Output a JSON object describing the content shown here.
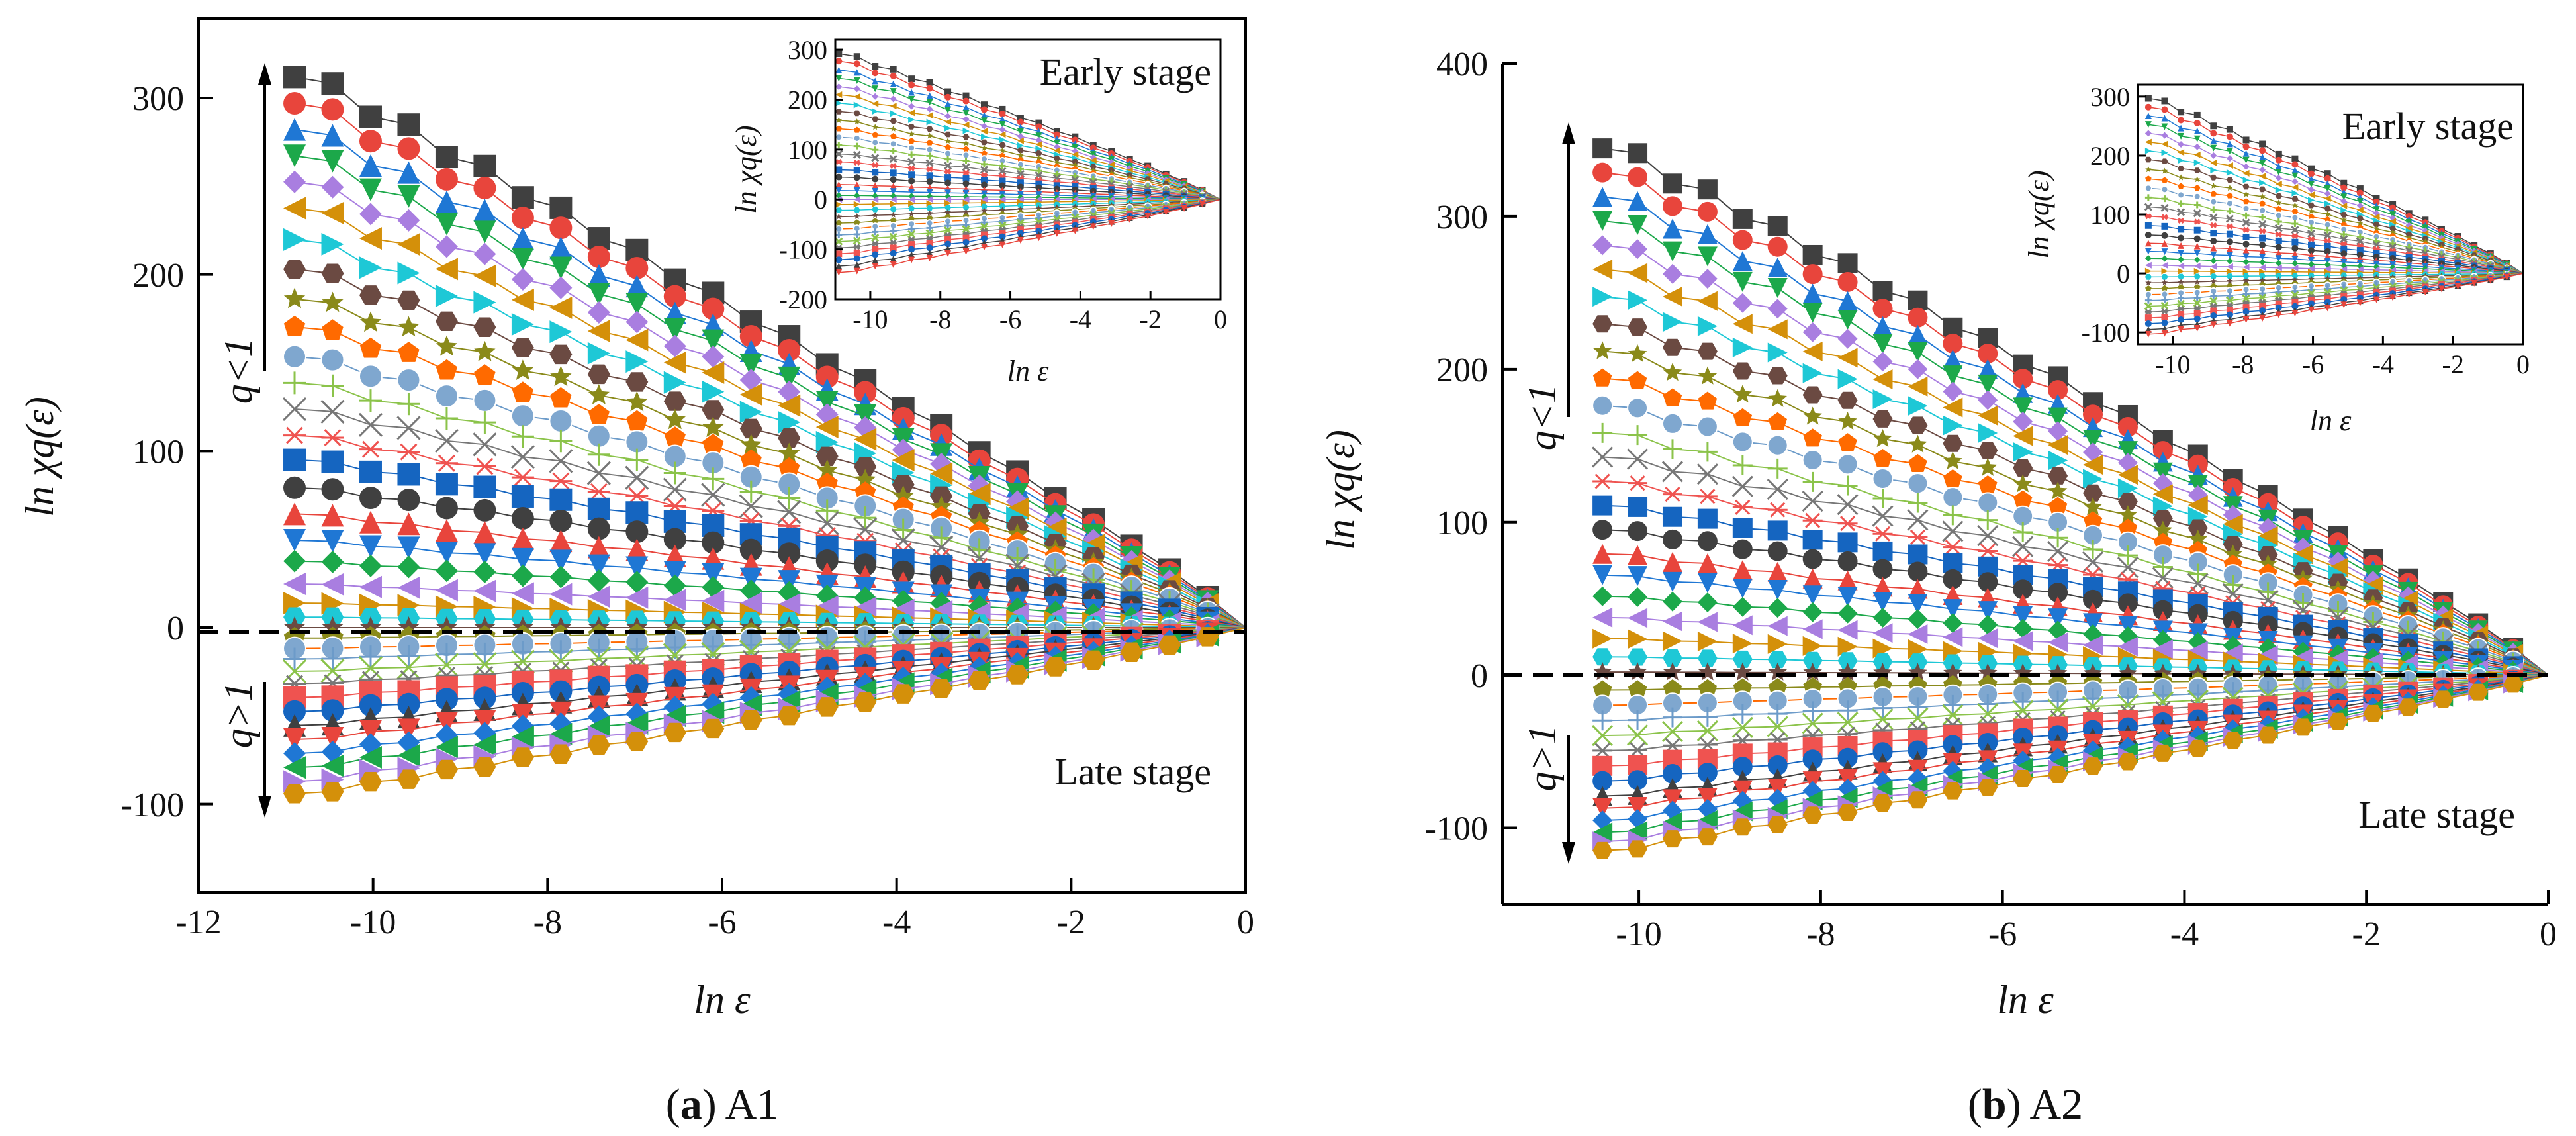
{
  "chart_data": [
    {
      "type": "line",
      "panel": "a",
      "caption_letter": "a",
      "caption_text": "A1",
      "xlabel": "ln ε",
      "ylabel": "ln χq(ε)",
      "xlim": [
        -12,
        0
      ],
      "ylim": [
        -150,
        345
      ],
      "xticks": [
        "-12",
        "-10",
        "-8",
        "-6",
        "-4",
        "-2",
        "0"
      ],
      "yticks": [
        "-100",
        "0",
        "100",
        "200",
        "300"
      ],
      "x_range": [
        -10.9,
        0
      ],
      "zero_line": true,
      "legend_placement": "none",
      "annotations": {
        "upper": "q<1",
        "lower": "q>1",
        "stage": "Late stage"
      },
      "series_start_values": [
        315,
        300,
        285,
        270,
        255,
        240,
        222,
        205,
        188,
        172,
        155,
        140,
        125,
        110,
        96,
        80,
        65,
        50,
        38,
        25,
        14,
        6,
        0,
        -6,
        -12,
        -18,
        -25,
        -32,
        -40,
        -48,
        -56,
        -64,
        -72,
        -80,
        -88,
        -95
      ],
      "inset": {
        "title": "Early stage",
        "xlabel": "ln ε",
        "ylabel": "ln χq(ε)",
        "xlim": [
          -11,
          0
        ],
        "ylim": [
          -200,
          320
        ],
        "xticks": [
          "-10",
          "-8",
          "-6",
          "-4",
          "-2",
          "0"
        ],
        "yticks": [
          "-200",
          "-100",
          "0",
          "100",
          "200",
          "300"
        ],
        "series_start_values": [
          295,
          280,
          262,
          245,
          228,
          212,
          195,
          178,
          160,
          143,
          126,
          110,
          92,
          76,
          60,
          45,
          30,
          18,
          8,
          0,
          -10,
          -22,
          -35,
          -48,
          -60,
          -72,
          -85,
          -98,
          -110,
          -122,
          -135,
          -148
        ]
      }
    },
    {
      "type": "line",
      "panel": "b",
      "caption_letter": "b",
      "caption_text": "A2",
      "xlabel": "ln ε",
      "ylabel": "ln χq(ε)",
      "xlim": [
        -11.5,
        0
      ],
      "ylim": [
        -150,
        400
      ],
      "xticks": [
        "-10",
        "-8",
        "-6",
        "-4",
        "-2",
        "0"
      ],
      "yticks": [
        "-100",
        "0",
        "100",
        "200",
        "300",
        "400"
      ],
      "x_range": [
        -10.4,
        0
      ],
      "zero_line": true,
      "legend_placement": "none",
      "annotations": {
        "upper": "q<1",
        "lower": "q>1",
        "stage": "Late stage"
      },
      "series_start_values": [
        348,
        332,
        316,
        300,
        284,
        268,
        250,
        232,
        214,
        196,
        178,
        160,
        144,
        128,
        112,
        96,
        80,
        66,
        52,
        38,
        24,
        12,
        2,
        -10,
        -20,
        -30,
        -40,
        -50,
        -60,
        -70,
        -80,
        -88,
        -96,
        -104,
        -110,
        -116
      ],
      "inset": {
        "title": "Early stage",
        "xlabel": "ln ε",
        "ylabel": "ln χq(ε)",
        "xlim": [
          -11,
          0
        ],
        "ylim": [
          -120,
          320
        ],
        "xticks": [
          "-10",
          "-8",
          "-6",
          "-4",
          "-2",
          "0"
        ],
        "yticks": [
          "-100",
          "0",
          "100",
          "200",
          "300"
        ],
        "series_start_values": [
          300,
          285,
          270,
          255,
          240,
          225,
          210,
          195,
          178,
          162,
          146,
          130,
          114,
          98,
          82,
          66,
          52,
          38,
          26,
          14,
          4,
          -6,
          -16,
          -26,
          -36,
          -46,
          -56,
          -66,
          -76,
          -86,
          -96,
          -104
        ]
      }
    }
  ],
  "palette": [
    "#404040",
    "#e8453c",
    "#1f77d4",
    "#1ca84a",
    "#a97ee0",
    "#d4900a",
    "#1ec8d6",
    "#6b4a42",
    "#8a8a1a",
    "#ff6a00",
    "#6c9bc9",
    "#8bc34a",
    "#777777",
    "#ef5350",
    "#1565c0"
  ]
}
